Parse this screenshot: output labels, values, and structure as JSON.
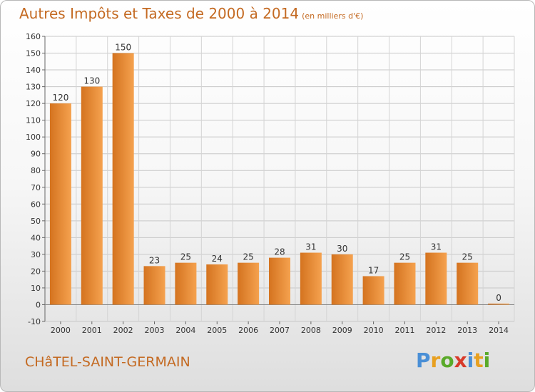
{
  "header": {
    "title": "Autres Impôts et Taxes de 2000 à 2014",
    "unit": "(en milliers d'€)"
  },
  "footer": {
    "town": "CHâTEL-SAINT-GERMAIN",
    "brand_letters": [
      {
        "ch": "P",
        "color": "#4a8fd6"
      },
      {
        "ch": "r",
        "color": "#e8a020"
      },
      {
        "ch": "o",
        "color": "#5aaa2a"
      },
      {
        "ch": "x",
        "color": "#d83a2a"
      },
      {
        "ch": "i",
        "color": "#4a8fd6"
      },
      {
        "ch": "t",
        "color": "#e8a020"
      },
      {
        "ch": "i",
        "color": "#5aaa2a"
      }
    ]
  },
  "colors": {
    "bar_light": "#f5a24f",
    "bar_dark": "#d4731f",
    "accent": "#c46a22"
  },
  "chart_data": {
    "type": "bar",
    "title": "Autres Impôts et Taxes de 2000 à 2014",
    "xlabel": "",
    "ylabel": "",
    "categories": [
      "2000",
      "2001",
      "2002",
      "2003",
      "2004",
      "2005",
      "2006",
      "2007",
      "2008",
      "2009",
      "2010",
      "2011",
      "2012",
      "2013",
      "2014"
    ],
    "values": [
      120,
      130,
      150,
      23,
      25,
      24,
      25,
      28,
      31,
      30,
      17,
      25,
      31,
      25,
      0
    ],
    "ylim": [
      -10,
      160
    ],
    "yticks": [
      -10,
      0,
      10,
      20,
      30,
      40,
      50,
      60,
      70,
      80,
      90,
      100,
      110,
      120,
      130,
      140,
      150,
      160
    ],
    "grid": true
  }
}
